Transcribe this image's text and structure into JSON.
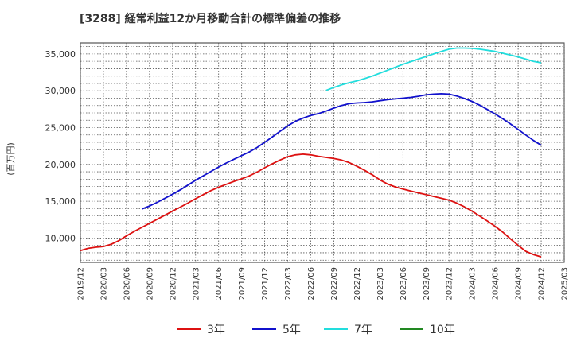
{
  "chart_data": {
    "type": "line",
    "title": "[3288]  経常利益12か月移動合計の標準偏差の推移",
    "ylabel": "(百万円)",
    "xlabel": "",
    "ylim": [
      6700,
      36500
    ],
    "yticks": [
      10000,
      15000,
      20000,
      25000,
      30000,
      35000
    ],
    "ytick_labels": [
      "10,000",
      "15,000",
      "20,000",
      "25,000",
      "30,000",
      "35,000"
    ],
    "xlim": [
      "2019-12",
      "2025-03"
    ],
    "xticks": [
      "2019/12",
      "2020/03",
      "2020/06",
      "2020/09",
      "2020/12",
      "2021/03",
      "2021/06",
      "2021/09",
      "2021/12",
      "2022/03",
      "2022/06",
      "2022/09",
      "2022/12",
      "2023/03",
      "2023/06",
      "2023/09",
      "2023/12",
      "2024/03",
      "2024/06",
      "2024/09",
      "2024/12",
      "2025/03"
    ],
    "grid": true,
    "legend_position": "bottom",
    "series": [
      {
        "name": "3年",
        "color": "#dd1111",
        "points": [
          [
            "2019-12",
            8300
          ],
          [
            "2020-01",
            8600
          ],
          [
            "2020-02",
            8750
          ],
          [
            "2020-03",
            8850
          ],
          [
            "2020-04",
            9150
          ],
          [
            "2020-05",
            9650
          ],
          [
            "2020-06",
            10300
          ],
          [
            "2020-07",
            10900
          ],
          [
            "2020-08",
            11450
          ],
          [
            "2020-09",
            12000
          ],
          [
            "2020-10",
            12550
          ],
          [
            "2020-11",
            13100
          ],
          [
            "2020-12",
            13650
          ],
          [
            "2021-01",
            14200
          ],
          [
            "2021-02",
            14750
          ],
          [
            "2021-03",
            15350
          ],
          [
            "2021-04",
            15900
          ],
          [
            "2021-05",
            16450
          ],
          [
            "2021-06",
            16900
          ],
          [
            "2021-07",
            17300
          ],
          [
            "2021-08",
            17700
          ],
          [
            "2021-09",
            18050
          ],
          [
            "2021-10",
            18450
          ],
          [
            "2021-11",
            18950
          ],
          [
            "2021-12",
            19550
          ],
          [
            "2022-01",
            20100
          ],
          [
            "2022-02",
            20600
          ],
          [
            "2022-03",
            21050
          ],
          [
            "2022-04",
            21300
          ],
          [
            "2022-05",
            21400
          ],
          [
            "2022-06",
            21300
          ],
          [
            "2022-07",
            21100
          ],
          [
            "2022-08",
            20950
          ],
          [
            "2022-09",
            20800
          ],
          [
            "2022-10",
            20600
          ],
          [
            "2022-11",
            20250
          ],
          [
            "2022-12",
            19750
          ],
          [
            "2023-01",
            19200
          ],
          [
            "2023-02",
            18600
          ],
          [
            "2023-03",
            17900
          ],
          [
            "2023-04",
            17350
          ],
          [
            "2023-05",
            16950
          ],
          [
            "2023-06",
            16650
          ],
          [
            "2023-07",
            16400
          ],
          [
            "2023-08",
            16150
          ],
          [
            "2023-09",
            15900
          ],
          [
            "2023-10",
            15650
          ],
          [
            "2023-11",
            15400
          ],
          [
            "2023-12",
            15150
          ],
          [
            "2024-01",
            14750
          ],
          [
            "2024-02",
            14250
          ],
          [
            "2024-03",
            13650
          ],
          [
            "2024-04",
            13000
          ],
          [
            "2024-05",
            12300
          ],
          [
            "2024-06",
            11600
          ],
          [
            "2024-07",
            10800
          ],
          [
            "2024-08",
            9900
          ],
          [
            "2024-09",
            9000
          ],
          [
            "2024-10",
            8200
          ],
          [
            "2024-11",
            7750
          ],
          [
            "2024-12",
            7450
          ]
        ]
      },
      {
        "name": "5年",
        "color": "#1111cc",
        "points": [
          [
            "2020-08",
            13950
          ],
          [
            "2020-09",
            14350
          ],
          [
            "2020-10",
            14850
          ],
          [
            "2020-11",
            15400
          ],
          [
            "2020-12",
            15950
          ],
          [
            "2021-01",
            16550
          ],
          [
            "2021-02",
            17200
          ],
          [
            "2021-03",
            17850
          ],
          [
            "2021-04",
            18450
          ],
          [
            "2021-05",
            19050
          ],
          [
            "2021-06",
            19650
          ],
          [
            "2021-07",
            20200
          ],
          [
            "2021-08",
            20700
          ],
          [
            "2021-09",
            21200
          ],
          [
            "2021-10",
            21700
          ],
          [
            "2021-11",
            22300
          ],
          [
            "2021-12",
            23000
          ],
          [
            "2022-01",
            23750
          ],
          [
            "2022-02",
            24500
          ],
          [
            "2022-03",
            25250
          ],
          [
            "2022-04",
            25850
          ],
          [
            "2022-05",
            26300
          ],
          [
            "2022-06",
            26650
          ],
          [
            "2022-07",
            26900
          ],
          [
            "2022-08",
            27250
          ],
          [
            "2022-09",
            27650
          ],
          [
            "2022-10",
            28000
          ],
          [
            "2022-11",
            28250
          ],
          [
            "2022-12",
            28350
          ],
          [
            "2023-01",
            28400
          ],
          [
            "2023-02",
            28500
          ],
          [
            "2023-03",
            28650
          ],
          [
            "2023-04",
            28800
          ],
          [
            "2023-05",
            28900
          ],
          [
            "2023-06",
            29000
          ],
          [
            "2023-07",
            29100
          ],
          [
            "2023-08",
            29250
          ],
          [
            "2023-09",
            29450
          ],
          [
            "2023-10",
            29550
          ],
          [
            "2023-11",
            29600
          ],
          [
            "2023-12",
            29550
          ],
          [
            "2024-01",
            29300
          ],
          [
            "2024-02",
            28950
          ],
          [
            "2024-03",
            28550
          ],
          [
            "2024-04",
            28050
          ],
          [
            "2024-05",
            27450
          ],
          [
            "2024-06",
            26850
          ],
          [
            "2024-07",
            26200
          ],
          [
            "2024-08",
            25500
          ],
          [
            "2024-09",
            24750
          ],
          [
            "2024-10",
            24000
          ],
          [
            "2024-11",
            23250
          ],
          [
            "2024-12",
            22600
          ]
        ]
      },
      {
        "name": "7年",
        "color": "#22dddd",
        "points": [
          [
            "2022-08",
            30050
          ],
          [
            "2022-09",
            30450
          ],
          [
            "2022-10",
            30800
          ],
          [
            "2022-11",
            31100
          ],
          [
            "2022-12",
            31350
          ],
          [
            "2023-01",
            31650
          ],
          [
            "2023-02",
            32000
          ],
          [
            "2023-03",
            32400
          ],
          [
            "2023-04",
            32800
          ],
          [
            "2023-05",
            33200
          ],
          [
            "2023-06",
            33600
          ],
          [
            "2023-07",
            33950
          ],
          [
            "2023-08",
            34300
          ],
          [
            "2023-09",
            34650
          ],
          [
            "2023-10",
            35000
          ],
          [
            "2023-11",
            35350
          ],
          [
            "2023-12",
            35650
          ],
          [
            "2024-01",
            35800
          ],
          [
            "2024-02",
            35800
          ],
          [
            "2024-03",
            35750
          ],
          [
            "2024-04",
            35650
          ],
          [
            "2024-05",
            35500
          ],
          [
            "2024-06",
            35350
          ],
          [
            "2024-07",
            35100
          ],
          [
            "2024-08",
            34850
          ],
          [
            "2024-09",
            34600
          ],
          [
            "2024-10",
            34300
          ],
          [
            "2024-11",
            34000
          ],
          [
            "2024-12",
            33800
          ]
        ]
      },
      {
        "name": "10年",
        "color": "#228822",
        "points": []
      }
    ]
  }
}
